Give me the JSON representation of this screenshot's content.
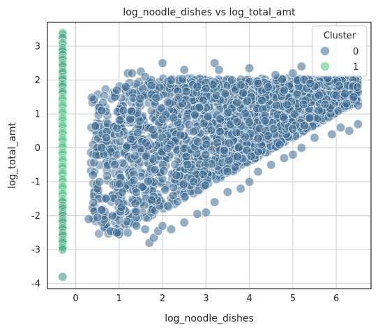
{
  "chart_data": {
    "type": "scatter",
    "title": "log_noodle_dishes vs log_total_amt",
    "xlabel": "log_noodle_dishes",
    "ylabel": "log_total_amt",
    "xlim": [
      -0.65,
      6.8
    ],
    "ylim": [
      -4.15,
      3.7
    ],
    "x_ticks": [
      0,
      1,
      2,
      3,
      4,
      5,
      6
    ],
    "y_ticks": [
      -4,
      -3,
      -2,
      -1,
      0,
      1,
      2,
      3
    ],
    "grid": true,
    "legend": {
      "title": "Cluster",
      "placement": "top-right",
      "entries": [
        "0",
        "1"
      ]
    },
    "colors": {
      "cluster_0": "#3b6a8f",
      "cluster_1": "#54c98a",
      "cluster_1_dark": "#2f8f7a",
      "grid": "#cccccc",
      "axis": "#262626"
    },
    "series": [
      {
        "name": "0",
        "description_points": "dense cloud bounded roughly by lower edge y = x*0.72 - 3.3 and upper edge y = x*0.3 + 1.6, x from 0.3 to 6.6",
        "points": [
          [
            0.3,
            -2.1
          ],
          [
            0.4,
            -0.8
          ],
          [
            0.5,
            -1.2
          ],
          [
            0.5,
            -2.05
          ],
          [
            0.6,
            1.1
          ],
          [
            0.55,
            -1.0
          ],
          [
            0.6,
            0.0
          ],
          [
            0.7,
            -1.5
          ],
          [
            0.7,
            0.3
          ],
          [
            0.8,
            -2.45
          ],
          [
            0.85,
            -2.0
          ],
          [
            0.9,
            1.5
          ],
          [
            0.9,
            -0.5
          ],
          [
            0.95,
            1.7
          ],
          [
            1.0,
            -2.55
          ],
          [
            1.1,
            1.1
          ],
          [
            1.15,
            1.8
          ],
          [
            1.2,
            2.2
          ],
          [
            1.3,
            2.2
          ],
          [
            1.5,
            2.25
          ],
          [
            1.6,
            2.1
          ],
          [
            1.7,
            -2.8
          ],
          [
            1.8,
            -2.65
          ],
          [
            1.9,
            -2.45
          ],
          [
            2.0,
            2.5
          ],
          [
            2.2,
            2.0
          ],
          [
            2.5,
            2.3
          ],
          [
            2.8,
            1.8
          ],
          [
            3.0,
            1.75
          ],
          [
            3.2,
            2.5
          ],
          [
            3.3,
            2.3
          ],
          [
            3.6,
            2.0
          ],
          [
            3.8,
            1.85
          ],
          [
            4.0,
            2.35
          ],
          [
            4.2,
            1.9
          ],
          [
            4.6,
            2.15
          ],
          [
            4.8,
            1.7
          ],
          [
            5.0,
            2.2
          ],
          [
            5.2,
            2.4
          ],
          [
            5.4,
            1.9
          ],
          [
            5.6,
            1.55
          ],
          [
            5.8,
            2.05
          ],
          [
            6.0,
            1.55
          ],
          [
            6.2,
            1.6
          ],
          [
            6.4,
            1.5
          ],
          [
            6.5,
            1.25
          ],
          [
            6.5,
            0.7
          ],
          [
            6.3,
            0.5
          ],
          [
            6.1,
            0.6
          ],
          [
            5.9,
            0.4
          ],
          [
            5.5,
            0.3
          ],
          [
            5.2,
            0.0
          ],
          [
            5.0,
            -0.2
          ],
          [
            4.8,
            -0.3
          ],
          [
            4.5,
            -0.5
          ],
          [
            4.2,
            -0.7
          ],
          [
            4.0,
            -1.0
          ],
          [
            3.8,
            -1.2
          ],
          [
            3.5,
            -1.3
          ],
          [
            3.2,
            -1.6
          ],
          [
            3.0,
            -1.9
          ],
          [
            2.8,
            -1.95
          ],
          [
            2.5,
            -2.2
          ],
          [
            2.2,
            -2.4
          ],
          [
            2.0,
            -2.3
          ],
          [
            1.6,
            -2.4
          ],
          [
            1.4,
            -2.3
          ],
          [
            1.2,
            -2.5
          ],
          [
            0.95,
            -2.5
          ]
        ]
      },
      {
        "name": "1",
        "x_constant": -0.3,
        "y_points": [
          3.35,
          3.25,
          3.05,
          2.95,
          2.85,
          2.75,
          2.6,
          2.5,
          2.4,
          2.3,
          2.2,
          2.1,
          2.0,
          1.9,
          1.8,
          1.7,
          1.6,
          1.5,
          1.4,
          1.3,
          1.2,
          1.1,
          1.0,
          0.9,
          0.8,
          0.7,
          0.6,
          0.5,
          0.4,
          0.3,
          0.2,
          0.1,
          0.0,
          -0.1,
          -0.2,
          -0.3,
          -0.4,
          -0.5,
          -0.6,
          -0.7,
          -0.8,
          -0.9,
          -1.0,
          -1.1,
          -1.2,
          -1.3,
          -1.4,
          -1.5,
          -1.6,
          -1.7,
          -1.8,
          -1.9,
          -2.0,
          -2.1,
          -2.2,
          -2.3,
          -2.4,
          -2.5,
          -2.6,
          -2.7,
          -2.8,
          -2.9,
          -3.0,
          -3.8
        ]
      }
    ]
  }
}
